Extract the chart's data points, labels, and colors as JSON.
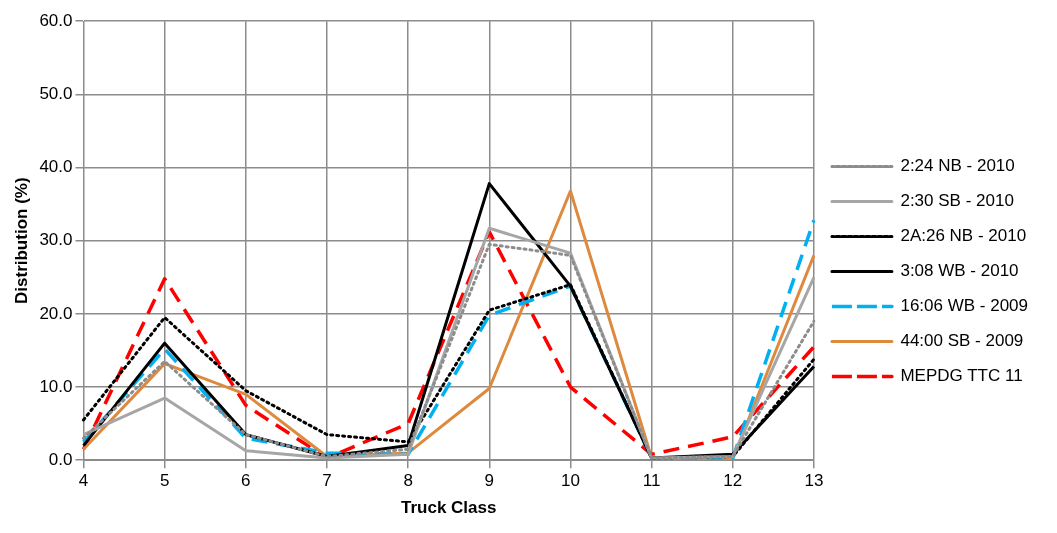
{
  "chart_data": {
    "type": "line",
    "xlabel": "Truck Class",
    "ylabel": "Distribution (%)",
    "categories": [
      "4",
      "5",
      "6",
      "7",
      "8",
      "9",
      "10",
      "11",
      "12",
      "13"
    ],
    "ylim": [
      0,
      60
    ],
    "yticks": [
      {
        "value": 0,
        "label": "0.0"
      },
      {
        "value": 10,
        "label": "10.0"
      },
      {
        "value": 20,
        "label": "20.0"
      },
      {
        "value": 30,
        "label": "30.0"
      },
      {
        "value": 40,
        "label": "40.0"
      },
      {
        "value": 50,
        "label": "50.0"
      },
      {
        "value": 60,
        "label": "60.0"
      }
    ],
    "grid": true,
    "legend": "right",
    "marker": "none",
    "series": [
      {
        "name": "2:24 NB - 2010",
        "color": "#8c8c8c",
        "line_style": "dotted",
        "values": [
          3,
          13.5,
          3.5,
          0.5,
          1.5,
          29.5,
          28,
          0.3,
          0.5,
          19
        ]
      },
      {
        "name": "2:30 SB - 2010",
        "color": "#a6a6a6",
        "line_style": "solid",
        "values": [
          3.5,
          8.5,
          1.3,
          0.3,
          0.8,
          31.7,
          28.3,
          0.3,
          0.5,
          25
        ]
      },
      {
        "name": "2A:26 NB - 2010",
        "color": "#000000",
        "line_style": "dotted",
        "values": [
          5.5,
          19.5,
          9.5,
          3.5,
          2.5,
          20.5,
          24,
          0.3,
          0.5,
          13.8
        ]
      },
      {
        "name": "3:08 WB - 2010",
        "color": "#000000",
        "line_style": "solid",
        "values": [
          2,
          16,
          3.5,
          0.5,
          2,
          37.8,
          23.8,
          0.3,
          0.8,
          12.8
        ]
      },
      {
        "name": "16:06 WB - 2009",
        "color": "#00b0f0",
        "line_style": "dashed",
        "values": [
          2.5,
          15.2,
          3,
          1,
          0.8,
          19.8,
          23.8,
          0.3,
          0.3,
          32.8
        ]
      },
      {
        "name": "44:00 SB - 2009",
        "color": "#dd8a3e",
        "line_style": "solid",
        "values": [
          1.5,
          13.2,
          9,
          0.5,
          1,
          9.8,
          36.8,
          0.3,
          0.2,
          28
        ]
      },
      {
        "name": "MEPDG TTC 11",
        "color": "#ff0000",
        "line_style": "dashed",
        "values": [
          1.5,
          24.8,
          7.5,
          0.3,
          5,
          31.2,
          10,
          0.8,
          3.2,
          15.5
        ]
      }
    ]
  }
}
